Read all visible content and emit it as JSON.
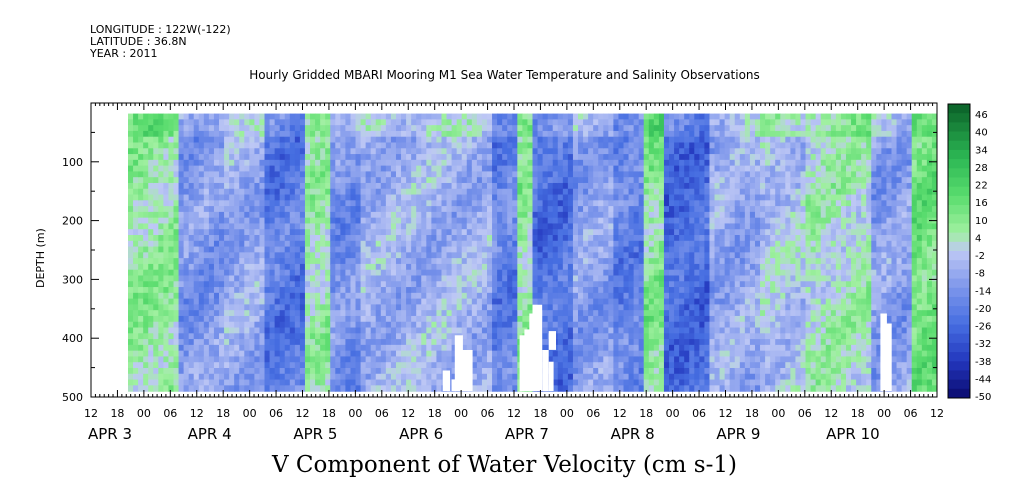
{
  "meta": {
    "longitude": "LONGITUDE : 122W(-122)",
    "latitude": "LATITUDE : 36.8N",
    "year": "YEAR : 2011"
  },
  "chart_data": {
    "type": "heatmap",
    "title": "Hourly Gridded MBARI Mooring M1 Sea Water Temperature and Salinity Observations",
    "variable_title": "V Component of Water Velocity (cm s-1)",
    "ylabel": "DEPTH (m)",
    "y_inverted": true,
    "ylim": [
      500,
      0
    ],
    "y_ticks": [
      100,
      200,
      300,
      400,
      500
    ],
    "x_hour_ticks": [
      "12",
      "18",
      "00",
      "06",
      "12",
      "18",
      "00",
      "06",
      "12",
      "18",
      "00",
      "06",
      "12",
      "18",
      "00",
      "06",
      "12",
      "18",
      "00",
      "06",
      "12",
      "18",
      "00",
      "06",
      "12",
      "18",
      "00",
      "06",
      "12",
      "18",
      "00",
      "06",
      "12"
    ],
    "x_day_labels": [
      "APR 3",
      "APR 4",
      "APR 5",
      "APR 6",
      "APR 7",
      "APR 8",
      "APR 9",
      "APR 10"
    ],
    "colorbar": {
      "labels": [
        "46",
        "40",
        "34",
        "28",
        "22",
        "16",
        "10",
        "4",
        "-2",
        "-8",
        "-14",
        "-20",
        "-26",
        "-32",
        "-38",
        "-44",
        "-50"
      ],
      "min": -50,
      "max": 46
    },
    "data_extent_depth_m": [
      18,
      490
    ],
    "column_bands": [
      {
        "x0": 0.0,
        "x1": 0.06,
        "v": 6
      },
      {
        "x0": 0.06,
        "x1": 0.12,
        "v": -14
      },
      {
        "x0": 0.12,
        "x1": 0.17,
        "v": -10
      },
      {
        "x0": 0.17,
        "x1": 0.22,
        "v": -22
      },
      {
        "x0": 0.22,
        "x1": 0.25,
        "v": 4
      },
      {
        "x0": 0.25,
        "x1": 0.29,
        "v": -16
      },
      {
        "x0": 0.29,
        "x1": 0.45,
        "v": -8
      },
      {
        "x0": 0.45,
        "x1": 0.48,
        "v": -20
      },
      {
        "x0": 0.48,
        "x1": 0.5,
        "v": 6
      },
      {
        "x0": 0.5,
        "x1": 0.55,
        "v": -24
      },
      {
        "x0": 0.55,
        "x1": 0.6,
        "v": -12
      },
      {
        "x0": 0.6,
        "x1": 0.64,
        "v": -20
      },
      {
        "x0": 0.64,
        "x1": 0.66,
        "v": 8
      },
      {
        "x0": 0.66,
        "x1": 0.72,
        "v": -26
      },
      {
        "x0": 0.72,
        "x1": 0.78,
        "v": -10
      },
      {
        "x0": 0.78,
        "x1": 0.84,
        "v": -4
      },
      {
        "x0": 0.84,
        "x1": 0.92,
        "v": 2
      },
      {
        "x0": 0.92,
        "x1": 0.97,
        "v": -12
      },
      {
        "x0": 0.97,
        "x1": 1.0,
        "v": 12
      }
    ],
    "missing_blocks_depth_m": [
      {
        "x0": 0.389,
        "x1": 0.398,
        "d0": 455,
        "d1": 490
      },
      {
        "x0": 0.4,
        "x1": 0.405,
        "d0": 470,
        "d1": 490
      },
      {
        "x0": 0.404,
        "x1": 0.414,
        "d0": 395,
        "d1": 490
      },
      {
        "x0": 0.412,
        "x1": 0.426,
        "d0": 420,
        "d1": 490
      },
      {
        "x0": 0.484,
        "x1": 0.49,
        "d0": 395,
        "d1": 490
      },
      {
        "x0": 0.49,
        "x1": 0.498,
        "d0": 385,
        "d1": 490
      },
      {
        "x0": 0.496,
        "x1": 0.502,
        "d0": 358,
        "d1": 490
      },
      {
        "x0": 0.5,
        "x1": 0.512,
        "d0": 343,
        "d1": 490
      },
      {
        "x0": 0.512,
        "x1": 0.52,
        "d0": 420,
        "d1": 490
      },
      {
        "x0": 0.52,
        "x1": 0.529,
        "d0": 388,
        "d1": 420
      },
      {
        "x0": 0.52,
        "x1": 0.526,
        "d0": 440,
        "d1": 490
      },
      {
        "x0": 0.93,
        "x1": 0.938,
        "d0": 358,
        "d1": 490
      },
      {
        "x0": 0.937,
        "x1": 0.944,
        "d0": 375,
        "d1": 490
      }
    ]
  }
}
